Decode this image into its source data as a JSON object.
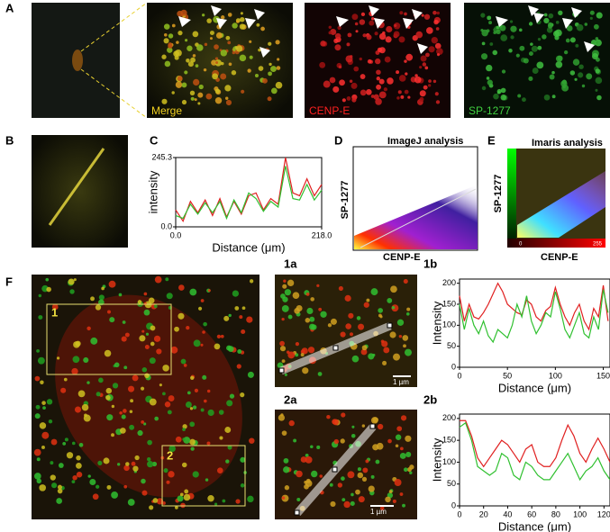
{
  "panel_a": {
    "label": "A",
    "captions": [
      "Merge",
      "CENP-E",
      "SP-1277"
    ]
  },
  "panel_b": {
    "label": "B"
  },
  "panel_d": {
    "label": "D",
    "title": "ImageJ analysis",
    "y_label": "SP-1277",
    "x_label": "CENP-E"
  },
  "panel_e": {
    "label": "E",
    "title": "Imaris analysis",
    "y_label": "SP-1277",
    "x_label": "CENP-E",
    "scale_min": "0",
    "scale_max": "255"
  },
  "panel_f": {
    "label": "F",
    "regions": [
      "1",
      "2"
    ],
    "sub_labels": [
      "1a",
      "1b",
      "2a",
      "2b"
    ],
    "scale_bars": [
      "1 µm",
      "1 µm"
    ]
  },
  "chart_data": [
    {
      "type": "line",
      "panel": "C",
      "x_label": "Distance (μm)",
      "y_label": "intensity",
      "xlim": [
        0,
        218
      ],
      "ylim": [
        0,
        245.3
      ],
      "xticks": [
        {
          "value": 0,
          "label": "0.0"
        },
        {
          "value": 218,
          "label": "218.0"
        }
      ],
      "yticks": [
        {
          "value": 0,
          "label": "0.0"
        },
        {
          "value": 245.3,
          "label": "245.3"
        }
      ],
      "x": [
        0,
        11,
        22,
        33,
        44,
        55,
        66,
        76,
        87,
        98,
        109,
        120,
        131,
        142,
        153,
        164,
        175,
        185,
        196,
        207,
        218
      ],
      "series": [
        {
          "color": "#e02020",
          "values": [
            60,
            20,
            90,
            50,
            95,
            40,
            100,
            35,
            90,
            45,
            110,
            120,
            60,
            100,
            80,
            245,
            120,
            110,
            170,
            110,
            150
          ]
        },
        {
          "color": "#30c030",
          "values": [
            40,
            30,
            80,
            45,
            85,
            50,
            90,
            30,
            95,
            50,
            120,
            100,
            55,
            90,
            70,
            215,
            100,
            95,
            150,
            95,
            130
          ]
        }
      ]
    },
    {
      "type": "line",
      "panel": "1b",
      "x_label": "Distance (μm)",
      "y_label": "Intensity",
      "xlim": [
        0,
        157
      ],
      "ylim": [
        0,
        210
      ],
      "xticks": [
        0,
        50,
        100,
        150
      ],
      "yticks": [
        0,
        50,
        100,
        150,
        200
      ],
      "x": [
        0,
        5,
        10,
        15,
        20,
        25,
        30,
        35,
        40,
        45,
        50,
        55,
        60,
        65,
        70,
        75,
        80,
        85,
        90,
        95,
        100,
        105,
        110,
        115,
        120,
        125,
        130,
        135,
        140,
        145,
        150,
        155
      ],
      "series": [
        {
          "color": "#e02020",
          "values": [
            170,
            110,
            150,
            120,
            115,
            130,
            150,
            175,
            200,
            180,
            150,
            140,
            130,
            125,
            160,
            150,
            120,
            110,
            135,
            145,
            190,
            150,
            120,
            100,
            130,
            150,
            110,
            90,
            140,
            120,
            195,
            110
          ]
        },
        {
          "color": "#30c030",
          "values": [
            150,
            90,
            140,
            100,
            80,
            110,
            75,
            60,
            90,
            80,
            70,
            100,
            150,
            120,
            170,
            110,
            80,
            100,
            130,
            120,
            180,
            140,
            90,
            70,
            100,
            130,
            80,
            70,
            120,
            90,
            185,
            130
          ]
        }
      ]
    },
    {
      "type": "line",
      "panel": "2b",
      "x_label": "Distance (μm)",
      "y_label": "Intensity",
      "xlim": [
        0,
        125
      ],
      "ylim": [
        0,
        210
      ],
      "xticks": [
        0,
        20,
        40,
        60,
        80,
        100,
        120
      ],
      "yticks": [
        0,
        50,
        100,
        150,
        200
      ],
      "x": [
        0,
        5,
        10,
        15,
        20,
        25,
        30,
        35,
        40,
        45,
        50,
        55,
        60,
        65,
        70,
        75,
        80,
        85,
        90,
        95,
        100,
        105,
        110,
        115,
        120,
        125
      ],
      "series": [
        {
          "color": "#e02020",
          "values": [
            195,
            195,
            160,
            110,
            90,
            110,
            130,
            150,
            140,
            120,
            100,
            130,
            140,
            100,
            90,
            90,
            110,
            150,
            185,
            160,
            120,
            100,
            130,
            155,
            130,
            100
          ]
        },
        {
          "color": "#30c030",
          "values": [
            180,
            190,
            150,
            90,
            80,
            70,
            80,
            120,
            110,
            70,
            60,
            100,
            90,
            70,
            60,
            60,
            80,
            100,
            120,
            90,
            60,
            80,
            90,
            110,
            80,
            60
          ]
        }
      ]
    }
  ]
}
